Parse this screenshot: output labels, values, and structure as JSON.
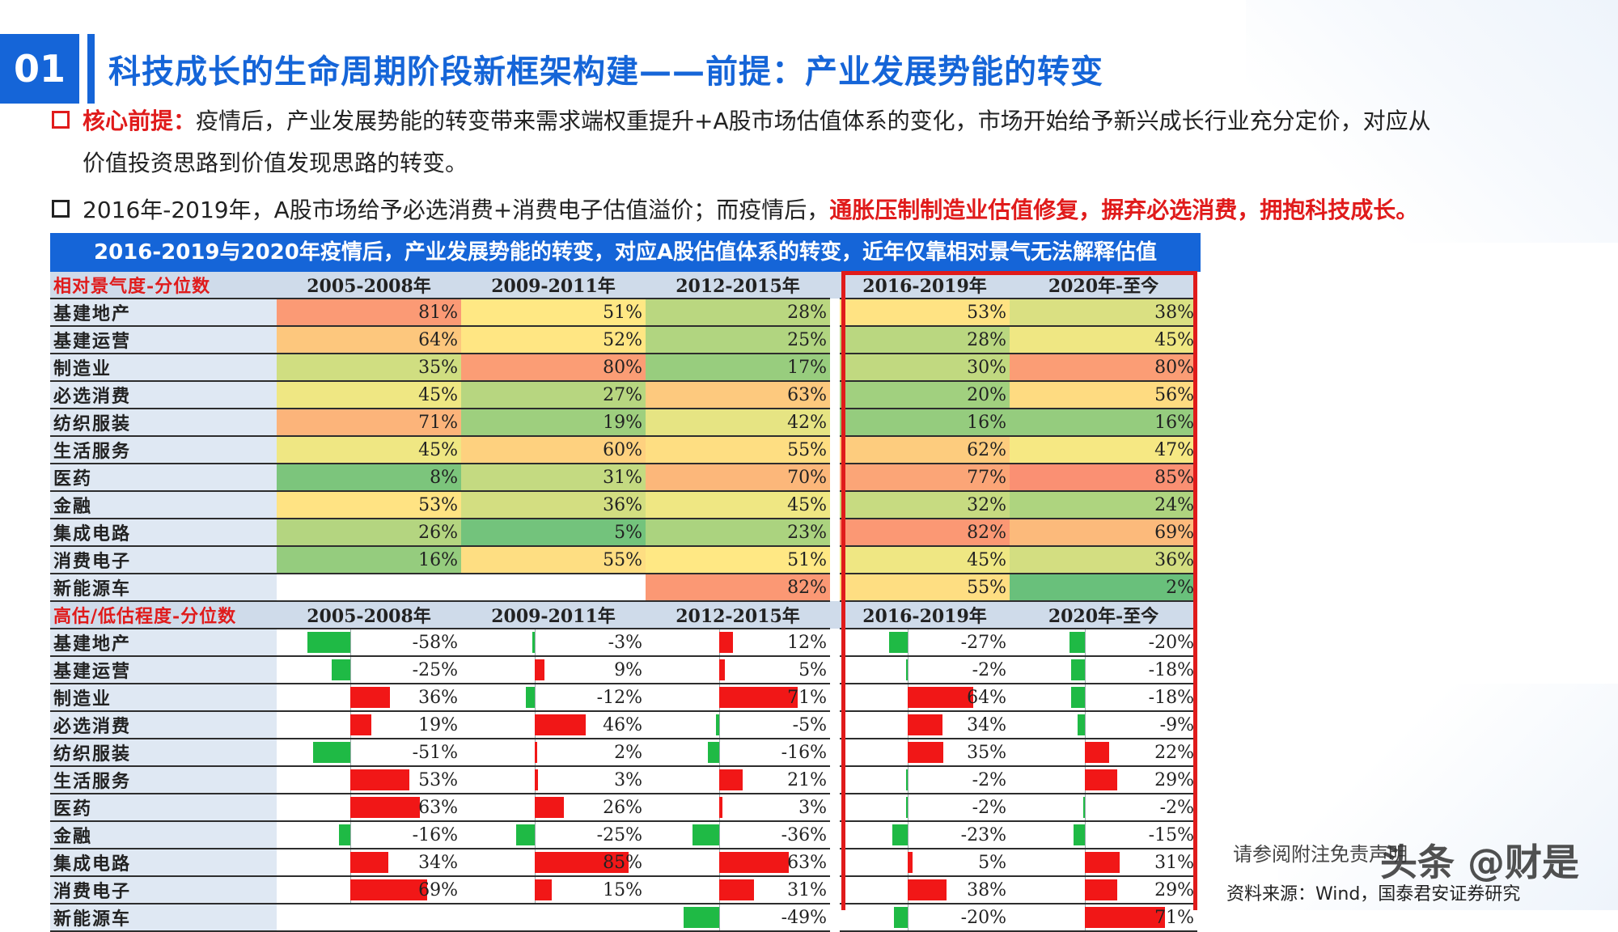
{
  "slide": {
    "number": "01",
    "title": "科技成长的生命周期阶段新框架构建——前提：产业发展势能的转变"
  },
  "bullets": {
    "b1_label": "核心前提：",
    "b1_text_line1": "疫情后，产业发展势能的转变带来需求端权重提升+A股市场估值体系的变化，市场开始给予新兴成长行业充分定价，对应从",
    "b1_text_line2": "价值投资思路到价值发现思路的转变。",
    "b2_text": "2016年-2019年，A股市场给予必选消费+消费电子估值溢价；而疫情后，",
    "b2_highlight": "通胀压制制造业估值修复，摒弃必选消费，拥抱科技成长。"
  },
  "table": {
    "banner": "2016-2019与2020年疫情后，产业发展势能的转变，对应A股估值体系的转变，近年仅靠相对景气无法解释估值",
    "periods": [
      "2005-2008年",
      "2009-2011年",
      "2012-2015年",
      "2016-2019年",
      "2020年-至今"
    ],
    "section1": {
      "label": "相对景气度-分位数",
      "rows": [
        {
          "name": "基建地产",
          "values": [
            "81%",
            "51%",
            "28%",
            "53%",
            "38%"
          ]
        },
        {
          "name": "基建运营",
          "values": [
            "64%",
            "52%",
            "25%",
            "28%",
            "45%"
          ]
        },
        {
          "name": "制造业",
          "values": [
            "35%",
            "80%",
            "17%",
            "30%",
            "80%"
          ]
        },
        {
          "name": "必选消费",
          "values": [
            "45%",
            "27%",
            "63%",
            "20%",
            "56%"
          ]
        },
        {
          "name": "纺织服装",
          "values": [
            "71%",
            "19%",
            "42%",
            "16%",
            "16%"
          ]
        },
        {
          "name": "生活服务",
          "values": [
            "45%",
            "60%",
            "55%",
            "62%",
            "47%"
          ]
        },
        {
          "name": "医药",
          "values": [
            "8%",
            "31%",
            "70%",
            "77%",
            "85%"
          ]
        },
        {
          "name": "金融",
          "values": [
            "53%",
            "36%",
            "45%",
            "32%",
            "24%"
          ]
        },
        {
          "name": "集成电路",
          "values": [
            "26%",
            "5%",
            "23%",
            "82%",
            "69%"
          ]
        },
        {
          "name": "消费电子",
          "values": [
            "16%",
            "55%",
            "51%",
            "45%",
            "36%"
          ]
        },
        {
          "name": "新能源车",
          "values": [
            "",
            "",
            "82%",
            "55%",
            "2%"
          ]
        }
      ]
    },
    "section2": {
      "label": "高估/低估程度-分位数",
      "rows": [
        {
          "name": "基建地产",
          "values": [
            "-58%",
            "-3%",
            "12%",
            "-27%",
            "-20%"
          ]
        },
        {
          "name": "基建运营",
          "values": [
            "-25%",
            "9%",
            "5%",
            "-2%",
            "-18%"
          ]
        },
        {
          "name": "制造业",
          "values": [
            "36%",
            "-12%",
            "71%",
            "64%",
            "-18%"
          ]
        },
        {
          "name": "必选消费",
          "values": [
            "19%",
            "46%",
            "-5%",
            "34%",
            "-9%"
          ]
        },
        {
          "name": "纺织服装",
          "values": [
            "-51%",
            "2%",
            "-16%",
            "35%",
            "22%"
          ]
        },
        {
          "name": "生活服务",
          "values": [
            "53%",
            "3%",
            "21%",
            "-2%",
            "29%"
          ]
        },
        {
          "name": "医药",
          "values": [
            "63%",
            "26%",
            "3%",
            "-2%",
            "-2%"
          ]
        },
        {
          "name": "金融",
          "values": [
            "-16%",
            "-25%",
            "-36%",
            "-23%",
            "-15%"
          ]
        },
        {
          "name": "集成电路",
          "values": [
            "34%",
            "85%",
            "63%",
            "5%",
            "31%"
          ]
        },
        {
          "name": "消费电子",
          "values": [
            "69%",
            "15%",
            "31%",
            "38%",
            "29%"
          ]
        },
        {
          "name": "新能源车",
          "values": [
            "",
            "",
            "-49%",
            "-20%",
            "71%"
          ]
        }
      ]
    },
    "colors": {
      "heat_low": "#63be7b",
      "heat_mid": "#ffeb84",
      "heat_high": "#f8696b",
      "bar_positive": "#f11717",
      "bar_negative": "#1fba45",
      "highlight_frame": "#e01b1b",
      "brand_blue": "#1565d8"
    }
  },
  "footer": {
    "disclaimer": "请参阅附注免责声明",
    "source": "资料来源：Wind，国泰君安证券研究",
    "watermark": "头条 @财是"
  }
}
